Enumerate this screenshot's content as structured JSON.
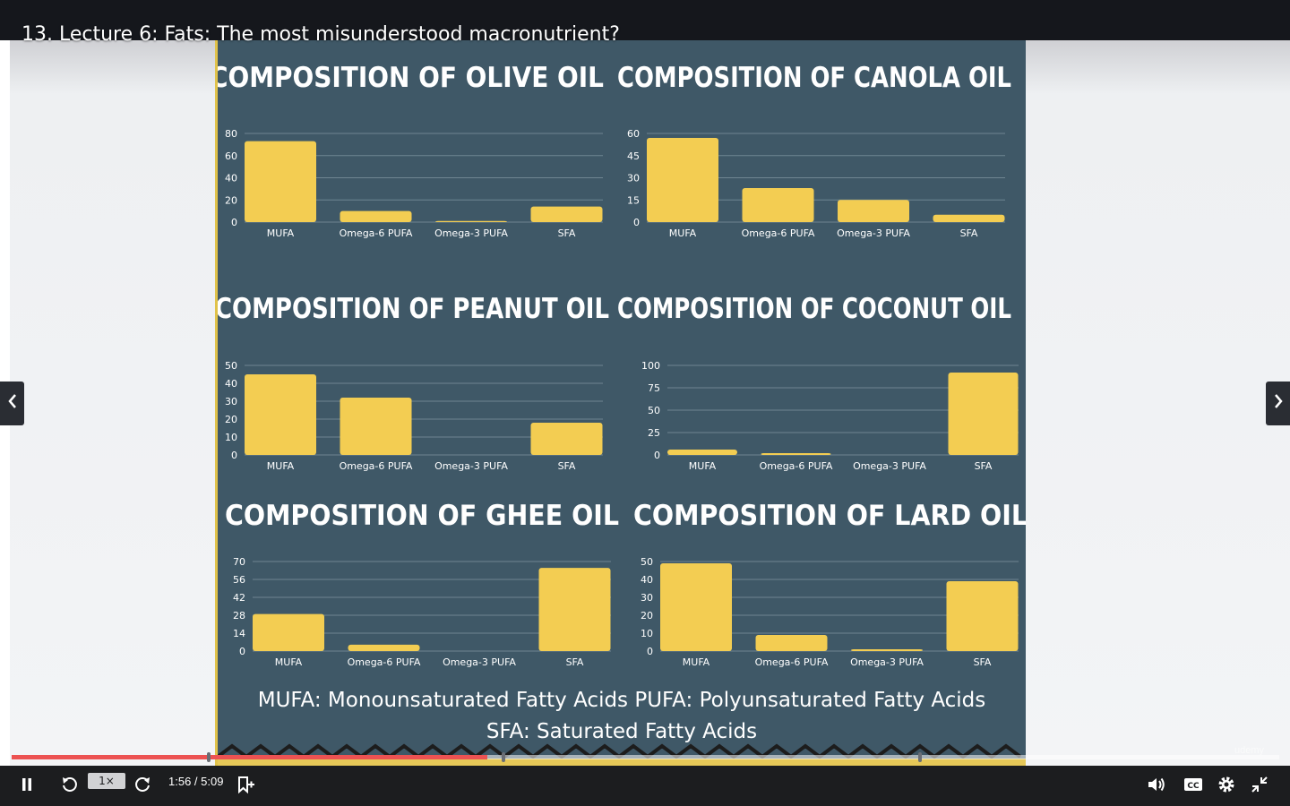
{
  "lecture": {
    "title": "13. Lecture 6: Fats: The most misunderstood macronutrient?"
  },
  "player": {
    "current_time": "1:56",
    "duration": "5:09",
    "time_text": "1:56 / 5:09",
    "speed": "1×",
    "progress": 0.375,
    "watermark": "udemy"
  },
  "slide": {
    "footer_line1": "MUFA: Monounsaturated Fatty Acids PUFA: Polyunsaturated Fatty Acids",
    "footer_line2": "SFA: Saturated Fatty Acids"
  },
  "icons": {
    "prev": "chevron-left-icon",
    "next": "chevron-right-icon",
    "pause": "pause-icon",
    "rewind": "rewind-5-icon",
    "forward": "forward-5-icon",
    "bookmark": "add-note-icon",
    "volume": "volume-icon",
    "captions": "captions-icon",
    "settings": "gear-icon",
    "fullscreen": "exit-fullscreen-icon"
  },
  "colors": {
    "bar": "#f3cd52",
    "slide_bg": "#3f5867",
    "progress": "#ec5252",
    "controls_bg": "#1c1d1f"
  },
  "chart_data": [
    {
      "type": "bar",
      "title": "COMPOSITION OF OLIVE OIL",
      "categories": [
        "MUFA",
        "Omega-6 PUFA",
        "Omega-3 PUFA",
        "SFA"
      ],
      "values": [
        73,
        10,
        1,
        14
      ],
      "yticks": [
        "80",
        "60",
        "40",
        "20",
        "0"
      ],
      "ylim": [
        0,
        80
      ]
    },
    {
      "type": "bar",
      "title": "COMPOSITION OF CANOLA OIL",
      "categories": [
        "MUFA",
        "Omega-6 PUFA",
        "Omega-3 PUFA",
        "SFA"
      ],
      "values": [
        57,
        23,
        15,
        5
      ],
      "yticks": [
        "60",
        "45",
        "30",
        "15",
        "0"
      ],
      "ylim": [
        0,
        60
      ]
    },
    {
      "type": "bar",
      "title": "COMPOSITION OF PEANUT OIL",
      "categories": [
        "MUFA",
        "Omega-6 PUFA",
        "Omega-3 PUFA",
        "SFA"
      ],
      "values": [
        45,
        32,
        0,
        18
      ],
      "yticks": [
        "50",
        "40",
        "30",
        "20",
        "10",
        "0"
      ],
      "ylim": [
        0,
        50
      ]
    },
    {
      "type": "bar",
      "title": "COMPOSITION OF COCONUT OIL",
      "categories": [
        "MUFA",
        "Omega-6 PUFA",
        "Omega-3 PUFA",
        "SFA"
      ],
      "values": [
        6,
        2,
        0,
        92
      ],
      "yticks": [
        "100",
        "75",
        "50",
        "25",
        "0"
      ],
      "ylim": [
        0,
        100
      ]
    },
    {
      "type": "bar",
      "title": "COMPOSITION OF GHEE OIL",
      "categories": [
        "MUFA",
        "Omega-6 PUFA",
        "Omega-3 PUFA",
        "SFA"
      ],
      "values": [
        29,
        5,
        0,
        65
      ],
      "yticks": [
        "70",
        "56",
        "42",
        "28",
        "14",
        "0"
      ],
      "ylim": [
        0,
        70
      ]
    },
    {
      "type": "bar",
      "title": "COMPOSITION OF LARD OIL",
      "categories": [
        "MUFA",
        "Omega-6 PUFA",
        "Omega-3 PUFA",
        "SFA"
      ],
      "values": [
        49,
        9,
        1,
        39
      ],
      "yticks": [
        "50",
        "40",
        "30",
        "20",
        "10",
        "0"
      ],
      "ylim": [
        0,
        50
      ]
    }
  ]
}
